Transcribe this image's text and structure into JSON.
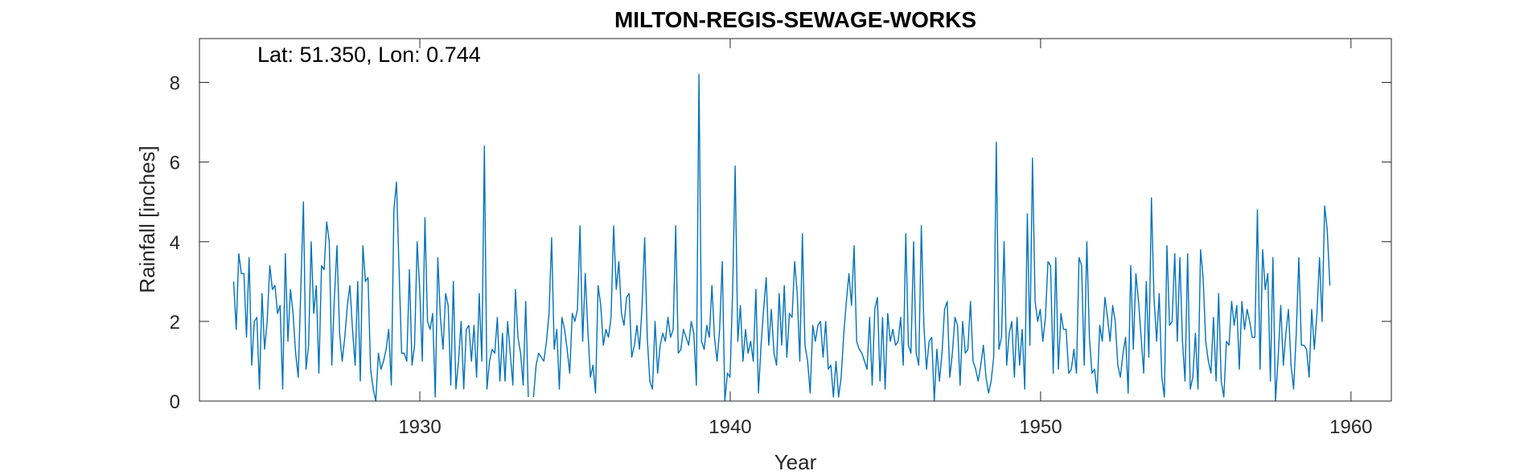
{
  "chart_data": {
    "type": "line",
    "title": "MILTON-REGIS-SEWAGE-WORKS",
    "annotation": "Lat: 51.350, Lon: 0.744",
    "xlabel": "Year",
    "ylabel": "Rainfall [inches]",
    "xlim": [
      1922.9,
      1961.3
    ],
    "ylim": [
      0,
      9.1
    ],
    "xticks": [
      1930,
      1940,
      1950,
      1960
    ],
    "yticks": [
      0,
      2,
      4,
      6,
      8
    ],
    "grid": false,
    "line_color": "#0072BD",
    "x_start": 1924.0,
    "x_step": 0.0833,
    "series": [
      {
        "values": [
          3.0,
          1.8,
          3.7,
          3.2,
          3.2,
          1.6,
          3.6,
          0.9,
          2.0,
          2.1,
          0.3,
          2.7,
          1.3,
          2.0,
          3.4,
          2.8,
          2.9,
          2.2,
          2.4,
          0.3,
          3.7,
          1.5,
          2.8,
          2.2,
          1.2,
          0.6,
          2.8,
          5.0,
          0.8,
          1.4,
          4.0,
          2.2,
          2.9,
          0.7,
          3.4,
          3.3,
          4.5,
          4.0,
          0.9,
          2.6,
          3.9,
          1.7,
          1.0,
          1.6,
          2.4,
          2.9,
          1.8,
          0.9,
          3.0,
          0.5,
          3.9,
          3.0,
          3.1,
          0.8,
          0.3,
          0.0,
          1.2,
          0.8,
          1.0,
          1.3,
          1.8,
          0.4,
          4.8,
          5.5,
          3.3,
          1.2,
          1.2,
          1.0,
          3.3,
          0.9,
          1.4,
          4.0,
          2.8,
          1.0,
          4.6,
          2.0,
          1.8,
          2.2,
          0.1,
          3.6,
          2.1,
          1.3,
          2.7,
          2.4,
          0.4,
          3.0,
          0.3,
          1.0,
          2.0,
          0.3,
          1.8,
          1.9,
          1.0,
          1.9,
          0.6,
          2.7,
          1.0,
          6.4,
          0.3,
          1.0,
          1.3,
          1.2,
          2.1,
          0.5,
          1.7,
          0.5,
          2.0,
          1.2,
          0.4,
          2.8,
          1.6,
          1.2,
          0.4,
          2.5,
          0.1,
          null,
          0.1,
          0.9,
          1.2,
          1.1,
          1.0,
          1.5,
          2.2,
          4.1,
          1.3,
          1.8,
          0.3,
          2.1,
          1.8,
          1.3,
          0.7,
          2.2,
          2.0,
          2.3,
          4.4,
          1.5,
          3.2,
          1.8,
          0.6,
          0.9,
          0.2,
          2.9,
          2.4,
          1.4,
          1.8,
          1.6,
          2.1,
          4.4,
          2.8,
          3.5,
          2.2,
          1.9,
          2.6,
          2.7,
          1.1,
          1.4,
          1.9,
          1.3,
          2.4,
          4.1,
          1.6,
          0.5,
          0.3,
          2.0,
          0.7,
          1.4,
          1.7,
          1.5,
          2.1,
          1.6,
          1.8,
          4.4,
          1.2,
          1.3,
          1.8,
          1.6,
          1.4,
          2.0,
          1.7,
          0.4,
          8.2,
          1.5,
          1.3,
          1.9,
          1.6,
          2.9,
          1.6,
          1.0,
          1.8,
          3.5,
          0.0,
          0.7,
          0.6,
          2.7,
          5.9,
          1.5,
          2.4,
          1.0,
          1.8,
          1.2,
          1.5,
          1.0,
          2.8,
          0.2,
          1.4,
          2.3,
          3.1,
          1.4,
          2.3,
          1.2,
          0.9,
          2.7,
          1.4,
          2.9,
          1.1,
          2.2,
          2.1,
          3.5,
          2.7,
          1.0,
          4.2,
          1.4,
          1.0,
          0.2,
          1.9,
          1.5,
          1.9,
          2.0,
          1.1,
          2.0,
          0.8,
          0.9,
          0.1,
          1.0,
          0.1,
          0.6,
          1.7,
          2.5,
          3.2,
          2.4,
          3.9,
          1.5,
          1.3,
          1.2,
          1.0,
          0.8,
          2.1,
          0.4,
          2.3,
          2.6,
          0.5,
          2.1,
          0.3,
          2.2,
          1.5,
          1.8,
          1.4,
          1.5,
          2.1,
          0.9,
          4.2,
          1.4,
          1.2,
          4.0,
          1.2,
          0.9,
          4.4,
          1.9,
          0.8,
          1.5,
          1.6,
          0.0,
          1.3,
          0.5,
          1.2,
          2.3,
          2.5,
          0.6,
          1.2,
          2.1,
          1.9,
          0.4,
          2.0,
          1.2,
          1.3,
          2.5,
          1.0,
          0.8,
          0.5,
          0.9,
          1.4,
          0.6,
          0.2,
          0.5,
          1.1,
          6.5,
          1.3,
          1.6,
          4.0,
          0.9,
          1.7,
          2.0,
          0.6,
          2.1,
          0.9,
          1.8,
          0.3,
          4.7,
          1.4,
          6.1,
          2.5,
          2.0,
          2.3,
          1.5,
          2.1,
          3.5,
          3.4,
          0.7,
          3.6,
          0.8,
          2.2,
          1.8,
          1.8,
          0.7,
          0.8,
          1.3,
          0.7,
          3.6,
          3.4,
          0.9,
          4.0,
          1.6,
          0.7,
          0.8,
          0.2,
          1.9,
          1.5,
          2.6,
          2.1,
          1.5,
          2.4,
          2.0,
          0.9,
          0.6,
          1.2,
          1.6,
          0.2,
          3.4,
          1.3,
          3.2,
          2.5,
          1.6,
          0.7,
          3.0,
          1.1,
          5.1,
          2.6,
          1.5,
          2.7,
          0.6,
          0.1,
          3.9,
          1.9,
          2.0,
          3.7,
          1.5,
          3.6,
          1.5,
          0.5,
          3.7,
          0.3,
          0.6,
          1.7,
          0.3,
          3.8,
          3.1,
          1.5,
          1.0,
          0.7,
          2.1,
          0.5,
          2.7,
          0.5,
          0.1,
          1.5,
          1.4,
          2.5,
          1.9,
          2.4,
          0.8,
          2.5,
          1.8,
          2.3,
          2.0,
          1.6,
          1.6,
          4.8,
          0.8,
          3.8,
          2.8,
          3.2,
          0.5,
          3.6,
          0.0,
          1.1,
          2.4,
          0.9,
          1.7,
          2.3,
          0.9,
          0.3,
          1.7,
          3.6,
          1.4,
          1.4,
          1.3,
          0.6,
          2.3,
          1.3,
          2.2,
          3.6,
          2.0,
          4.9,
          4.3,
          2.9
        ]
      }
    ]
  }
}
